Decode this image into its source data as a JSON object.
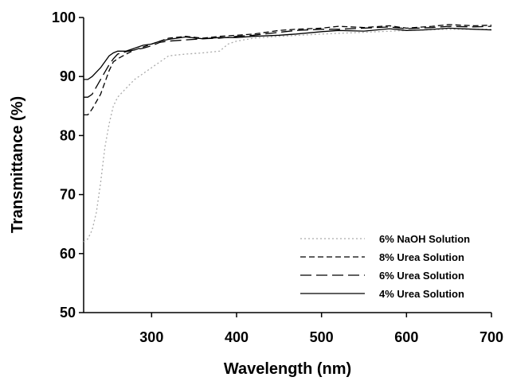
{
  "chart_data": {
    "type": "line",
    "xlabel": "Wavelength (nm)",
    "ylabel": "Transmittance (%)",
    "xlim": [
      220,
      700
    ],
    "ylim": [
      50,
      100
    ],
    "xticks": [
      300,
      400,
      500,
      600,
      700
    ],
    "yticks": [
      50,
      60,
      70,
      80,
      90,
      100
    ],
    "grid": false,
    "legend_position": "bottom-right",
    "series": [
      {
        "name": "6% NaOH Solution",
        "dash": "2,3",
        "color": "#aaaaaa",
        "points": [
          [
            220,
            62
          ],
          [
            225,
            62.5
          ],
          [
            230,
            64
          ],
          [
            235,
            67
          ],
          [
            240,
            72
          ],
          [
            245,
            78
          ],
          [
            250,
            82
          ],
          [
            255,
            85
          ],
          [
            260,
            86.5
          ],
          [
            270,
            88
          ],
          [
            280,
            89.5
          ],
          [
            290,
            90.5
          ],
          [
            300,
            91.5
          ],
          [
            310,
            92.5
          ],
          [
            320,
            93.5
          ],
          [
            340,
            93.8
          ],
          [
            360,
            94
          ],
          [
            380,
            94.3
          ],
          [
            390,
            95.5
          ],
          [
            400,
            96
          ],
          [
            420,
            96.5
          ],
          [
            450,
            96.8
          ],
          [
            500,
            97.2
          ],
          [
            550,
            97.5
          ],
          [
            600,
            97.8
          ],
          [
            650,
            98
          ],
          [
            700,
            98
          ]
        ]
      },
      {
        "name": "8% Urea Solution",
        "dash": "7,4",
        "color": "#000000",
        "points": [
          [
            220,
            83.5
          ],
          [
            225,
            83.5
          ],
          [
            230,
            84.5
          ],
          [
            240,
            87
          ],
          [
            250,
            91
          ],
          [
            255,
            92.5
          ],
          [
            260,
            93
          ],
          [
            270,
            93.8
          ],
          [
            280,
            94.5
          ],
          [
            290,
            95
          ],
          [
            300,
            95.5
          ],
          [
            310,
            96
          ],
          [
            320,
            96.5
          ],
          [
            340,
            96.8
          ],
          [
            360,
            96.5
          ],
          [
            380,
            96.8
          ],
          [
            400,
            97
          ],
          [
            420,
            97.2
          ],
          [
            450,
            97.8
          ],
          [
            470,
            98
          ],
          [
            500,
            98.2
          ],
          [
            520,
            98.5
          ],
          [
            550,
            98.3
          ],
          [
            580,
            98.6
          ],
          [
            600,
            98.2
          ],
          [
            630,
            98.5
          ],
          [
            650,
            98.8
          ],
          [
            680,
            98.6
          ],
          [
            700,
            98.7
          ]
        ]
      },
      {
        "name": "6% Urea Solution",
        "dash": "14,6",
        "color": "#000000",
        "points": [
          [
            220,
            86.5
          ],
          [
            225,
            86.5
          ],
          [
            230,
            87
          ],
          [
            240,
            89.5
          ],
          [
            250,
            92
          ],
          [
            255,
            93
          ],
          [
            260,
            93.8
          ],
          [
            270,
            94.2
          ],
          [
            280,
            94.5
          ],
          [
            290,
            94.8
          ],
          [
            300,
            95.2
          ],
          [
            310,
            95.8
          ],
          [
            320,
            96
          ],
          [
            340,
            96.2
          ],
          [
            360,
            96.4
          ],
          [
            380,
            96.5
          ],
          [
            400,
            96.8
          ],
          [
            420,
            97
          ],
          [
            450,
            97.5
          ],
          [
            470,
            97.8
          ],
          [
            500,
            98
          ],
          [
            520,
            98
          ],
          [
            550,
            98.2
          ],
          [
            580,
            98.4
          ],
          [
            600,
            98.1
          ],
          [
            630,
            98.3
          ],
          [
            650,
            98.5
          ],
          [
            680,
            98.4
          ],
          [
            700,
            98.5
          ]
        ]
      },
      {
        "name": "4% Urea Solution",
        "dash": "",
        "color": "#000000",
        "points": [
          [
            220,
            89.5
          ],
          [
            225,
            89.5
          ],
          [
            230,
            90
          ],
          [
            240,
            91.5
          ],
          [
            250,
            93.5
          ],
          [
            255,
            94
          ],
          [
            260,
            94.3
          ],
          [
            270,
            94.3
          ],
          [
            280,
            94.8
          ],
          [
            290,
            95.3
          ],
          [
            300,
            95.5
          ],
          [
            310,
            96
          ],
          [
            320,
            96.3
          ],
          [
            330,
            96.5
          ],
          [
            340,
            96.7
          ],
          [
            360,
            96.4
          ],
          [
            380,
            96.6
          ],
          [
            400,
            96.6
          ],
          [
            420,
            96.8
          ],
          [
            450,
            97
          ],
          [
            470,
            97.2
          ],
          [
            500,
            97.6
          ],
          [
            520,
            97.8
          ],
          [
            550,
            97.7
          ],
          [
            580,
            98.1
          ],
          [
            600,
            97.8
          ],
          [
            620,
            97.9
          ],
          [
            650,
            98.2
          ],
          [
            680,
            98
          ],
          [
            700,
            97.9
          ]
        ]
      }
    ]
  }
}
